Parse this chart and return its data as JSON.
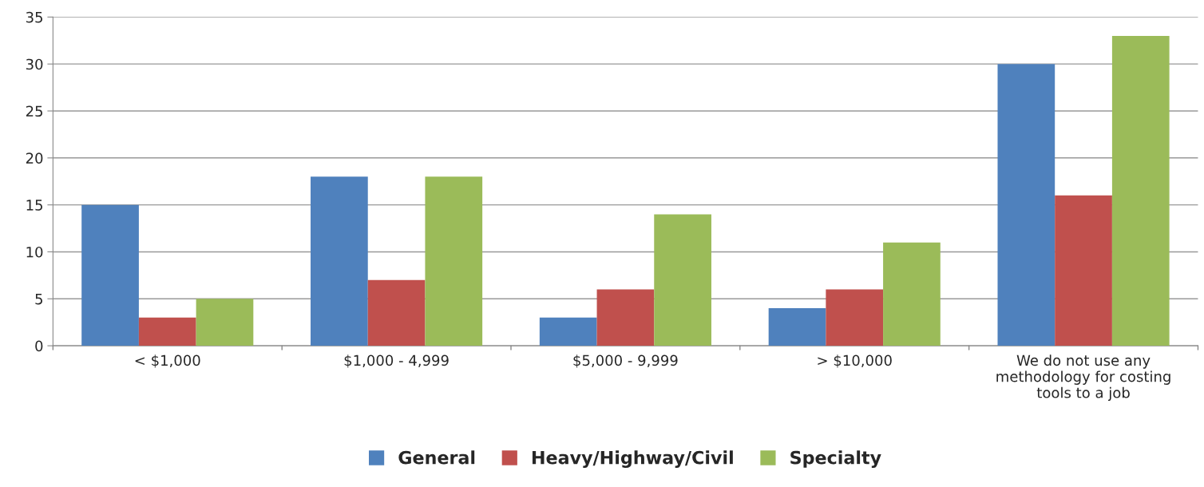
{
  "chart_data": {
    "type": "bar",
    "categories": [
      "< $1,000",
      "$1,000 - 4,999",
      "$5,000 - 9,999",
      "> $10,000",
      "We do not use any methodology for costing tools to a job"
    ],
    "series": [
      {
        "name": "General",
        "color": "#4f81bd",
        "values": [
          15,
          18,
          3,
          4,
          30
        ]
      },
      {
        "name": "Heavy/Highway/Civil",
        "color": "#c0504d",
        "values": [
          3,
          7,
          6,
          6,
          16
        ]
      },
      {
        "name": "Specialty",
        "color": "#9bbb59",
        "values": [
          5,
          18,
          14,
          11,
          33
        ]
      }
    ],
    "ylim": [
      0,
      35
    ],
    "yticks": [
      0,
      5,
      10,
      15,
      20,
      25,
      30,
      35
    ],
    "grid": "y",
    "legend": "bottom"
  }
}
